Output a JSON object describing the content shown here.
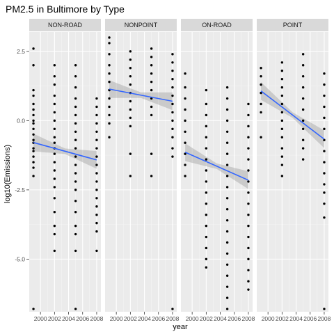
{
  "chart_data": {
    "type": "scatter",
    "title": "PM2.5 in Bultimore by Type",
    "xlabel": "year",
    "ylabel": "log10(Emissions)",
    "x_ticks": [
      2000,
      2002,
      2004,
      2006,
      2008
    ],
    "x_tick_labels": [
      "2000",
      "2002",
      "2004",
      "2006",
      "2008"
    ],
    "xlim": [
      1998.4,
      2008.6
    ],
    "y_ticks": [
      -5.0,
      -2.5,
      0.0,
      2.5
    ],
    "y_tick_labels": [
      "-5.0",
      "-2.5",
      "0.0",
      "2.5"
    ],
    "ylim": [
      -6.9,
      3.2
    ],
    "grid": true,
    "years": [
      1999,
      2002,
      2005,
      2008
    ],
    "panels": [
      {
        "name": "NON-ROAD",
        "points": {
          "1999": [
            2.6,
            2.0,
            1.1,
            0.9,
            0.6,
            0.4,
            0.2,
            0.0,
            -0.1,
            -0.3,
            -0.5,
            -0.7,
            -0.8,
            -1.0,
            -1.1,
            -1.3,
            -1.5,
            -1.7,
            -2.0,
            -6.8
          ],
          "2002": [
            2.0,
            1.6,
            1.3,
            0.9,
            0.6,
            0.3,
            0.0,
            -0.3,
            -0.6,
            -0.8,
            -1.0,
            -1.2,
            -1.5,
            -1.8,
            -2.1,
            -2.4,
            -2.8,
            -3.3,
            -3.8,
            -4.1,
            -4.7
          ],
          "2005": [
            2.0,
            1.6,
            1.2,
            0.8,
            0.5,
            0.2,
            -0.1,
            -0.4,
            -0.7,
            -1.0,
            -1.3,
            -1.6,
            -1.9,
            -2.2,
            -2.5,
            -2.9,
            -3.3,
            -3.8,
            -4.1,
            -4.7,
            -6.8
          ],
          "2008": [
            0.8,
            0.5,
            0.2,
            -0.1,
            -0.4,
            -0.7,
            -1.0,
            -1.3,
            -1.6,
            -1.9,
            -2.2,
            -2.5,
            -2.8,
            -3.1,
            -3.4,
            -3.7,
            -4.0,
            -4.7
          ]
        },
        "fit": {
          "x0": 1999,
          "y0": -0.79,
          "x1": 2008,
          "y1": -1.42
        }
      },
      {
        "name": "NONPOINT",
        "points": {
          "1999": [
            3.0,
            2.8,
            2.4,
            2.0,
            1.7,
            1.4,
            1.1,
            0.8,
            0.5,
            0.2,
            -0.1,
            -0.6
          ],
          "2002": [
            2.5,
            2.2,
            1.9,
            1.6,
            1.3,
            1.0,
            0.7,
            0.4,
            0.1,
            -0.2,
            -1.2,
            -2.0
          ],
          "2005": [
            2.6,
            2.3,
            2.0,
            1.7,
            1.4,
            1.1,
            0.8,
            0.5,
            0.2,
            -1.2,
            -2.0
          ],
          "2008": [
            2.4,
            2.1,
            1.8,
            1.5,
            1.2,
            0.9,
            0.6,
            0.3,
            0.0,
            -0.3,
            -0.6,
            -1.0,
            -1.3,
            -6.8
          ]
        },
        "fit": {
          "x0": 1999,
          "y0": 1.14,
          "x1": 2008,
          "y1": 0.7
        }
      },
      {
        "name": "ON-ROAD",
        "points": {
          "1999": [
            1.7,
            1.2,
            0.8,
            0.4,
            0.0,
            -0.4,
            -0.8,
            -1.2,
            -1.6,
            -2.0
          ],
          "2002": [
            1.1,
            0.6,
            0.2,
            -0.2,
            -0.6,
            -1.0,
            -1.4,
            -1.8,
            -2.2,
            -2.6,
            -3.0,
            -3.4,
            -3.8,
            -4.2,
            -4.6,
            -5.0,
            -5.3
          ],
          "2005": [
            1.2,
            0.8,
            0.4,
            0.0,
            -0.4,
            -0.8,
            -1.2,
            -1.6,
            -2.0,
            -2.4,
            -2.8,
            -3.2,
            -3.6,
            -4.0,
            -4.4,
            -4.8,
            -5.2,
            -5.6,
            -6.0,
            -6.4,
            -6.8
          ],
          "2008": [
            0.6,
            0.2,
            -0.2,
            -0.6,
            -1.0,
            -1.4,
            -1.8,
            -2.2,
            -2.6,
            -3.0,
            -3.4,
            -3.8,
            -4.2,
            -4.6,
            -5.0,
            -5.4,
            -5.8,
            -6.1
          ]
        },
        "fit": {
          "x0": 1999,
          "y0": -1.14,
          "x1": 2008,
          "y1": -2.15
        }
      },
      {
        "name": "POINT",
        "points": {
          "1999": [
            1.9,
            1.6,
            1.3,
            1.0,
            0.6,
            0.3,
            -0.6
          ],
          "2002": [
            2.1,
            1.8,
            1.5,
            1.2,
            0.9,
            0.6,
            0.3,
            0.0,
            -0.3,
            -0.6,
            -1.0,
            -1.3,
            -1.6,
            -2.0
          ],
          "2005": [
            2.4,
            2.0,
            1.6,
            1.2,
            0.8,
            0.4,
            0.0,
            -0.3,
            -0.7,
            -1.0,
            -1.4
          ],
          "2008": [
            1.7,
            1.3,
            0.9,
            0.5,
            0.1,
            -0.3,
            -0.7,
            -1.1,
            -1.5,
            -1.9,
            -2.3,
            -2.6,
            -3.0,
            -3.5,
            -6.8
          ]
        },
        "fit": {
          "x0": 1999,
          "y0": 1.07,
          "x1": 2008,
          "y1": -0.67
        }
      }
    ],
    "colors": {
      "panel_bg": "#ebebeb",
      "grid_major": "#ffffff",
      "grid_minor": "#f5f5f5",
      "strip_bg": "#d9d9d9",
      "point": "#000000",
      "fit_line": "#3366ff",
      "ci_band": "#999999"
    }
  }
}
